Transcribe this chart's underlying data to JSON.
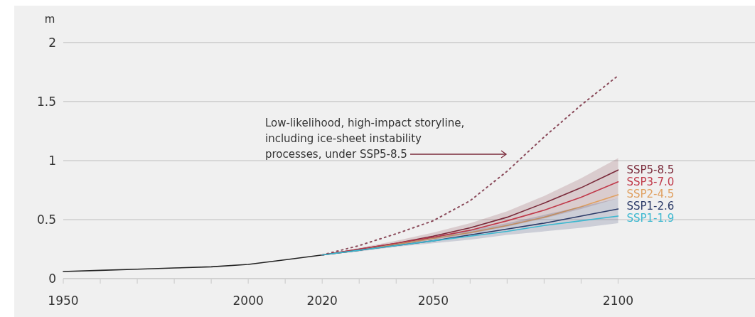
{
  "chart_data": {
    "type": "line",
    "ylabel": "m",
    "x": [
      1950,
      1960,
      1970,
      1980,
      1990,
      2000,
      2010,
      2020,
      2030,
      2040,
      2050,
      2060,
      2070,
      2080,
      2090,
      2100
    ],
    "series": [
      {
        "color": "#222222",
        "values": [
          0.06,
          0.07,
          0.08,
          0.09,
          0.1,
          0.12,
          0.16,
          0.2,
          null,
          null,
          null,
          null,
          null,
          null,
          null,
          null
        ]
      },
      {
        "color": "#8a4a5a",
        "line_style": "dotted",
        "values": [
          null,
          null,
          null,
          null,
          null,
          null,
          null,
          0.2,
          0.28,
          0.38,
          0.49,
          0.66,
          0.91,
          1.2,
          1.47,
          1.72
        ]
      },
      {
        "name": "SSP5-8.5",
        "color": "#7a2a3a",
        "values": [
          null,
          null,
          null,
          null,
          null,
          null,
          null,
          0.2,
          0.25,
          0.3,
          0.36,
          0.43,
          0.52,
          0.64,
          0.77,
          0.92
        ],
        "lower": [
          null,
          null,
          null,
          null,
          null,
          null,
          null,
          0.2,
          0.24,
          0.28,
          0.33,
          0.38,
          0.44,
          0.51,
          0.59,
          0.68
        ],
        "upper": [
          null,
          null,
          null,
          null,
          null,
          null,
          null,
          0.2,
          0.26,
          0.32,
          0.39,
          0.47,
          0.57,
          0.7,
          0.85,
          1.02
        ]
      },
      {
        "name": "SSP3-7.0",
        "color": "#c0394a",
        "values": [
          null,
          null,
          null,
          null,
          null,
          null,
          null,
          0.2,
          0.25,
          0.3,
          0.35,
          0.41,
          0.49,
          0.58,
          0.69,
          0.82
        ]
      },
      {
        "name": "SSP2-4.5",
        "color": "#e0a060",
        "values": [
          null,
          null,
          null,
          null,
          null,
          null,
          null,
          0.2,
          0.24,
          0.29,
          0.34,
          0.39,
          0.45,
          0.52,
          0.61,
          0.71
        ]
      },
      {
        "name": "SSP1-2.6",
        "color": "#2b3a67",
        "values": [
          null,
          null,
          null,
          null,
          null,
          null,
          null,
          0.2,
          0.24,
          0.28,
          0.32,
          0.37,
          0.42,
          0.47,
          0.53,
          0.59
        ],
        "lower": [
          null,
          null,
          null,
          null,
          null,
          null,
          null,
          0.2,
          0.23,
          0.27,
          0.3,
          0.33,
          0.37,
          0.4,
          0.43,
          0.47
        ],
        "upper": [
          null,
          null,
          null,
          null,
          null,
          null,
          null,
          0.2,
          0.25,
          0.3,
          0.35,
          0.41,
          0.47,
          0.54,
          0.61,
          0.68
        ]
      },
      {
        "name": "SSP1-1.9",
        "color": "#3cb8d0",
        "values": [
          null,
          null,
          null,
          null,
          null,
          null,
          null,
          0.2,
          0.24,
          0.28,
          0.32,
          0.36,
          0.4,
          0.45,
          0.49,
          0.53
        ]
      }
    ],
    "xlim": [
      1950,
      2137
    ],
    "xticks": [
      1950,
      {
        "value": 1960,
        "label": null
      },
      {
        "value": 1970,
        "label": null
      },
      {
        "value": 1980,
        "label": null
      },
      {
        "value": 1990,
        "label": null
      },
      2000,
      {
        "value": 2010,
        "label": null
      },
      2020,
      {
        "value": 2030,
        "label": null
      },
      {
        "value": 2040,
        "label": null
      },
      2050,
      {
        "value": 2060,
        "label": null
      },
      {
        "value": 2070,
        "label": null
      },
      {
        "value": 2080,
        "label": null
      },
      {
        "value": 2090,
        "label": null
      },
      2100
    ],
    "ylim": [
      0,
      2.3
    ],
    "yticks": [
      0,
      0.5,
      1,
      1.5,
      2
    ],
    "grid": "y",
    "annotations": [
      "Low-likelihood, high-impact storyline, including ice-sheet instability processes, under SSP5-8.5"
    ]
  }
}
